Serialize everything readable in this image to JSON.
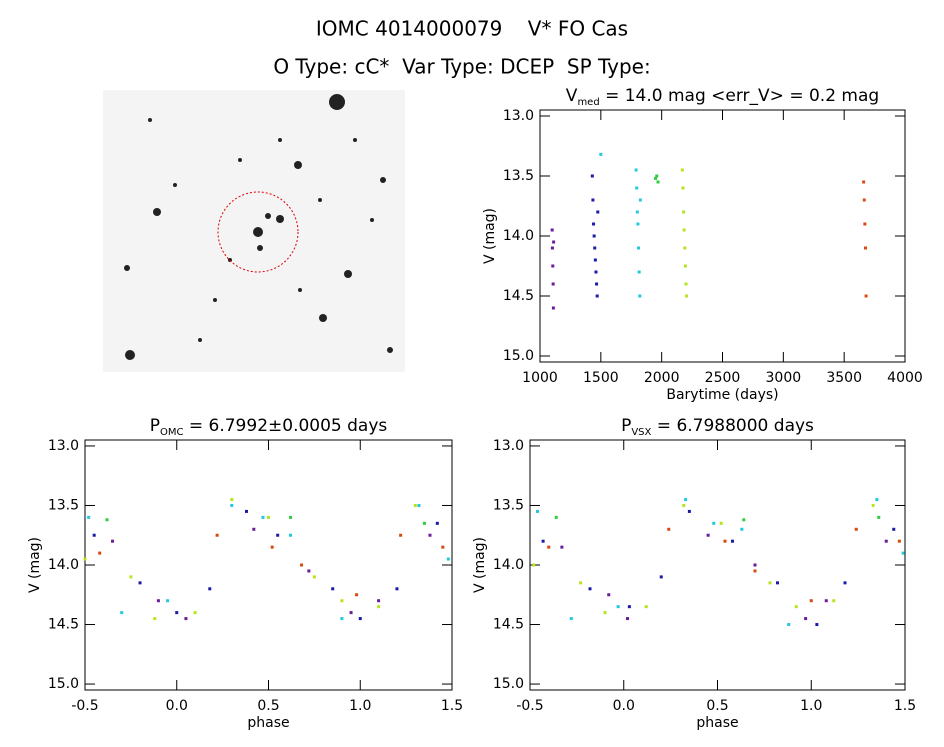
{
  "header": {
    "title": "IOMC 4014000079    V* FO Cas",
    "subtitle": "O Type: cC*  Var Type: DCEP  SP Type:"
  },
  "chart_data": [
    {
      "type": "scatter",
      "title": [
        "V",
        "med",
        " = 14.0 mag <err_V> = 0.2 mag"
      ],
      "x_label": "Barytime (days)",
      "y_label": "V (mag)",
      "xlim": [
        1000,
        4000
      ],
      "xticks": [
        1000,
        1500,
        2000,
        2500,
        3000,
        3500,
        4000
      ],
      "ylim": [
        15.05,
        12.95
      ],
      "yticks": [
        {
          "value": 13,
          "label": "13.0"
        },
        13.5,
        {
          "value": 14,
          "label": "14.0"
        },
        14.5,
        {
          "value": 15,
          "label": "15.0"
        }
      ],
      "series": [
        {
          "color": "#6a1b9a",
          "x": [
            1100,
            1102,
            1105,
            1108,
            1110,
            1112
          ],
          "values": [
            13.95,
            14.1,
            14.25,
            14.4,
            14.6,
            14.05
          ]
        },
        {
          "color": "#1a1aa8",
          "x": [
            1430,
            1435,
            1440,
            1445,
            1450,
            1455,
            1460,
            1465,
            1470,
            1475
          ],
          "values": [
            13.5,
            13.7,
            13.9,
            14.0,
            14.1,
            14.2,
            14.3,
            14.4,
            14.5,
            13.8
          ]
        },
        {
          "color": "#22c8e0",
          "x": [
            1500,
            1790,
            1795,
            1800,
            1805,
            1810,
            1815,
            1820,
            1825
          ],
          "values": [
            13.32,
            13.45,
            13.6,
            13.8,
            13.9,
            14.1,
            14.3,
            14.5,
            13.7
          ]
        },
        {
          "color": "#2ecc40",
          "x": [
            1950,
            1960,
            1970
          ],
          "values": [
            13.52,
            13.5,
            13.55
          ]
        },
        {
          "color": "#b5e61d",
          "x": [
            2170,
            2175,
            2180,
            2185,
            2190,
            2195,
            2200,
            2205
          ],
          "values": [
            13.45,
            13.6,
            13.8,
            13.95,
            14.1,
            14.25,
            14.4,
            14.5
          ]
        },
        {
          "color": "#d9480f",
          "x": [
            3660,
            3665,
            3670,
            3675,
            3680
          ],
          "values": [
            13.55,
            13.7,
            13.9,
            14.1,
            14.5
          ]
        }
      ]
    },
    {
      "type": "scatter",
      "title": [
        "P",
        "OMC",
        " = 6.7992±0.0005 days"
      ],
      "x_label": "phase",
      "y_label": "V (mag)",
      "xlim": [
        -0.5,
        1.5
      ],
      "xticks": [
        -0.5,
        {
          "value": 0,
          "label": "0.0"
        },
        0.5,
        {
          "value": 1,
          "label": "1.0"
        },
        1.5
      ],
      "ylim": [
        15.05,
        12.95
      ],
      "yticks": [
        {
          "value": 13,
          "label": "13.0"
        },
        13.5,
        {
          "value": 14,
          "label": "14.0"
        },
        14.5,
        {
          "value": 15,
          "label": "15.0"
        }
      ],
      "series": [
        {
          "color": "#6a1b9a",
          "x": [
            -0.35,
            -0.1,
            0.05,
            0.42,
            0.72,
            0.95,
            1.1,
            1.38
          ],
          "values": [
            13.8,
            14.3,
            14.45,
            13.7,
            14.05,
            14.4,
            14.3,
            13.75
          ]
        },
        {
          "color": "#1a1aa8",
          "x": [
            -0.45,
            -0.2,
            0.0,
            0.18,
            0.38,
            0.55,
            0.85,
            1.0,
            1.2,
            1.42
          ],
          "values": [
            13.75,
            14.15,
            14.4,
            14.2,
            13.55,
            13.75,
            14.2,
            14.45,
            14.2,
            13.65
          ]
        },
        {
          "color": "#22c8e0",
          "x": [
            -0.48,
            -0.3,
            -0.05,
            0.3,
            0.47,
            0.62,
            0.9,
            1.32,
            1.48
          ],
          "values": [
            13.6,
            14.4,
            14.3,
            13.5,
            13.6,
            13.75,
            14.45,
            13.5,
            13.95
          ]
        },
        {
          "color": "#2ecc40",
          "x": [
            -0.38,
            0.62,
            1.35
          ],
          "values": [
            13.62,
            13.6,
            13.65
          ]
        },
        {
          "color": "#b5e61d",
          "x": [
            -0.5,
            -0.25,
            -0.12,
            0.1,
            0.3,
            0.5,
            0.75,
            0.9,
            1.1,
            1.3
          ],
          "values": [
            13.95,
            14.1,
            14.45,
            14.4,
            13.45,
            13.6,
            14.1,
            14.3,
            14.35,
            13.5
          ]
        },
        {
          "color": "#d9480f",
          "x": [
            -0.42,
            0.22,
            0.52,
            0.68,
            0.98,
            1.22,
            1.45
          ],
          "values": [
            13.9,
            13.75,
            13.85,
            14.0,
            14.25,
            13.75,
            13.85
          ]
        }
      ]
    },
    {
      "type": "scatter",
      "title": [
        "P",
        "VSX",
        " = 6.7988000 days"
      ],
      "x_label": "phase",
      "y_label": "V (mag)",
      "xlim": [
        -0.5,
        1.5
      ],
      "xticks": [
        -0.5,
        {
          "value": 0,
          "label": "0.0"
        },
        0.5,
        {
          "value": 1,
          "label": "1.0"
        },
        1.5
      ],
      "ylim": [
        15.05,
        12.95
      ],
      "yticks": [
        {
          "value": 13,
          "label": "13.0"
        },
        13.5,
        {
          "value": 14,
          "label": "14.0"
        },
        14.5,
        {
          "value": 15,
          "label": "15.0"
        }
      ],
      "series": [
        {
          "color": "#6a1b9a",
          "x": [
            -0.33,
            -0.08,
            0.02,
            0.45,
            0.7,
            0.97,
            1.08,
            1.4
          ],
          "values": [
            13.85,
            14.25,
            14.45,
            13.75,
            14.0,
            14.45,
            14.3,
            13.8
          ]
        },
        {
          "color": "#1a1aa8",
          "x": [
            -0.43,
            -0.18,
            0.03,
            0.2,
            0.35,
            0.58,
            0.82,
            1.03,
            1.18,
            1.44
          ],
          "values": [
            13.8,
            14.2,
            14.35,
            14.1,
            13.55,
            13.8,
            14.15,
            14.5,
            14.15,
            13.7
          ]
        },
        {
          "color": "#22c8e0",
          "x": [
            -0.46,
            -0.28,
            -0.03,
            0.33,
            0.48,
            0.63,
            0.88,
            1.35,
            1.49
          ],
          "values": [
            13.55,
            14.45,
            14.35,
            13.45,
            13.65,
            13.7,
            14.5,
            13.45,
            13.9
          ]
        },
        {
          "color": "#2ecc40",
          "x": [
            -0.36,
            0.64,
            1.36
          ],
          "values": [
            13.6,
            13.62,
            13.6
          ]
        },
        {
          "color": "#b5e61d",
          "x": [
            -0.48,
            -0.23,
            -0.1,
            0.12,
            0.32,
            0.52,
            0.78,
            0.92,
            1.12,
            1.33
          ],
          "values": [
            14.0,
            14.15,
            14.4,
            14.35,
            13.5,
            13.65,
            14.15,
            14.35,
            14.3,
            13.5
          ]
        },
        {
          "color": "#d9480f",
          "x": [
            -0.4,
            0.24,
            0.54,
            0.7,
            1.0,
            1.24,
            1.47
          ],
          "values": [
            13.85,
            13.7,
            13.8,
            14.05,
            14.3,
            13.7,
            13.8
          ]
        }
      ]
    }
  ]
}
